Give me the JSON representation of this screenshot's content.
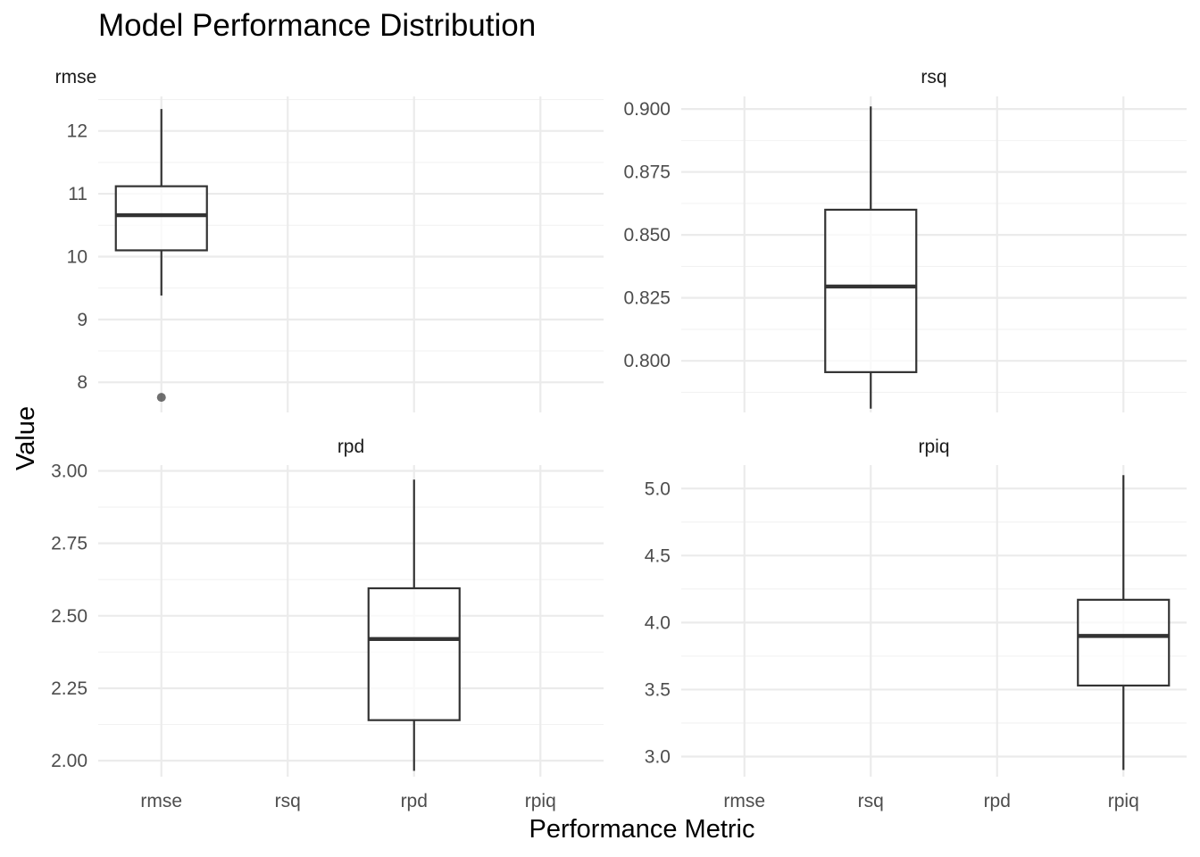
{
  "chart_data": {
    "type": "boxplot",
    "title": "Model Performance Distribution",
    "xlabel": "Performance Metric",
    "ylabel": "Value",
    "categories": [
      "rmse",
      "rsq",
      "rpd",
      "rpiq"
    ],
    "facets": [
      {
        "name": "rmse",
        "ylim": [
          7.52,
          12.55
        ],
        "yticks": [
          8,
          9,
          10,
          11,
          12
        ],
        "ytick_labels": [
          "8",
          "9",
          "10",
          "11",
          "12"
        ],
        "box": {
          "category": "rmse",
          "min": 9.38,
          "q1": 10.1,
          "median": 10.66,
          "q3": 11.12,
          "max": 12.35,
          "outliers": [
            7.76
          ]
        }
      },
      {
        "name": "rsq",
        "ylim": [
          0.7795,
          0.905
        ],
        "yticks": [
          0.8,
          0.825,
          0.85,
          0.875,
          0.9
        ],
        "ytick_labels": [
          "0.800",
          "0.825",
          "0.850",
          "0.875",
          "0.900"
        ],
        "box": {
          "category": "rsq",
          "min": 0.781,
          "q1": 0.7955,
          "median": 0.8295,
          "q3": 0.86,
          "max": 0.901,
          "outliers": []
        }
      },
      {
        "name": "rpd",
        "ylim": [
          1.945,
          3.02
        ],
        "yticks": [
          2.0,
          2.25,
          2.5,
          2.75,
          3.0
        ],
        "ytick_labels": [
          "2.00",
          "2.25",
          "2.50",
          "2.75",
          "3.00"
        ],
        "box": {
          "category": "rpd",
          "min": 1.965,
          "q1": 2.14,
          "median": 2.42,
          "q3": 2.595,
          "max": 2.97,
          "outliers": []
        }
      },
      {
        "name": "rpiq",
        "ylim": [
          2.85,
          5.175
        ],
        "yticks": [
          3.0,
          3.5,
          4.0,
          4.5,
          5.0
        ],
        "ytick_labels": [
          "3.0",
          "3.5",
          "4.0",
          "4.5",
          "5.0"
        ],
        "box": {
          "category": "rpiq",
          "min": 2.9,
          "q1": 3.53,
          "median": 3.9,
          "q3": 4.17,
          "max": 5.1,
          "outliers": []
        }
      }
    ],
    "grid": true,
    "legend": "none"
  }
}
